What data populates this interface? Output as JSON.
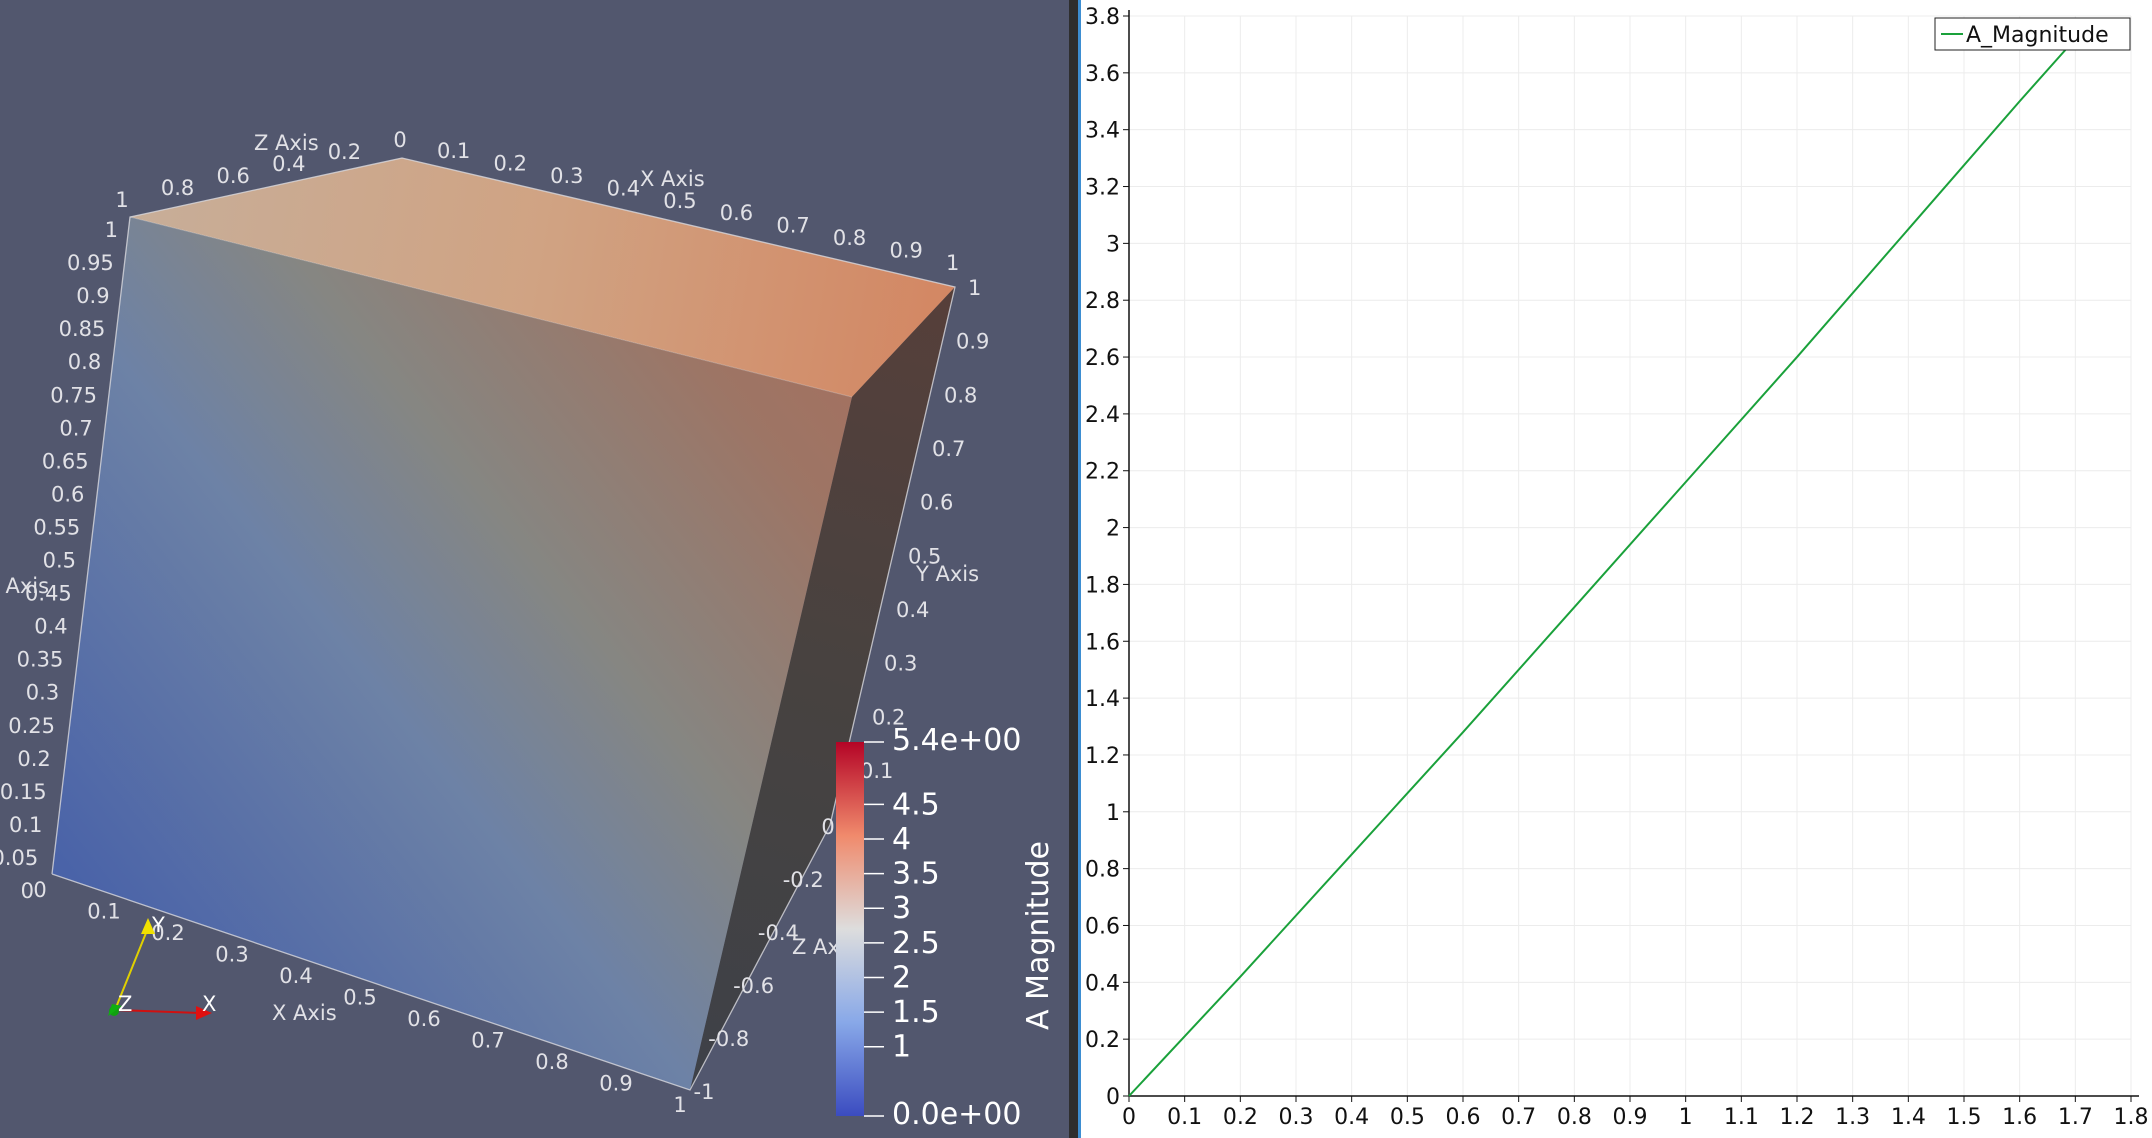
{
  "render_view": {
    "cube_axes": {
      "x_axis_title": "X Axis",
      "y_axis_title": "Y Axis",
      "z_axis_title": "Z Axis",
      "top_x_ticks": [
        "0.1",
        "0.2",
        "0.3",
        "0.4",
        "0.5",
        "0.6",
        "0.7",
        "0.8",
        "0.9",
        "1"
      ],
      "top_z_ticks": [
        "1",
        "0.8",
        "0.6",
        "0.4",
        "0.2",
        "0"
      ],
      "left_y_ticks": [
        "1",
        "0.95",
        "0.9",
        "0.85",
        "0.8",
        "0.75",
        "0.7",
        "0.65",
        "0.6",
        "0.55",
        "0.5",
        "0.45",
        "0.4",
        "0.35",
        "0.3",
        "0.25",
        "0.2",
        "0.15",
        "0.1",
        "0.05",
        "0"
      ],
      "bottom_x_ticks": [
        "0",
        "0.1",
        "0.2",
        "0.3",
        "0.4",
        "0.5",
        "0.6",
        "0.7",
        "0.8",
        "0.9",
        "1"
      ],
      "right_y_ticks": [
        "1",
        "0.9",
        "0.8",
        "0.7",
        "0.6",
        "0.5",
        "0.4",
        "0.3",
        "0.2",
        "0.1"
      ],
      "right_z_ticks": [
        "0",
        "-0.2",
        "-0.4",
        "-0.6",
        "-0.8",
        "-1"
      ]
    },
    "orientation_axes": {
      "x": "X",
      "y": "Y",
      "z": "Z"
    },
    "color_legend": {
      "title": "A Magnitude",
      "max_label": "5.4e+00",
      "min_label": "0.0e+00",
      "mid_labels": [
        "4.5",
        "4",
        "3.5",
        "3",
        "2.5",
        "2",
        "1.5",
        "1"
      ],
      "mid_values": [
        4.5,
        4,
        3.5,
        3,
        2.5,
        2,
        1.5,
        1
      ],
      "range": [
        0,
        5.4
      ],
      "colors": {
        "high": "#b40426",
        "mid": "#dddddd",
        "low": "#3b4cc0"
      }
    },
    "background_color": "#52576e"
  },
  "chart_data": {
    "type": "line",
    "title": "",
    "xlabel": "",
    "ylabel": "",
    "xlim": [
      0,
      1.8
    ],
    "ylim": [
      0,
      3.8
    ],
    "x_ticks": [
      0,
      0.1,
      0.2,
      0.3,
      0.4,
      0.5,
      0.6,
      0.7,
      0.8,
      0.9,
      1,
      1.1,
      1.2,
      1.3,
      1.4,
      1.5,
      1.6,
      1.7,
      1.8
    ],
    "y_ticks": [
      0,
      0.2,
      0.4,
      0.6,
      0.8,
      1,
      1.2,
      1.4,
      1.6,
      1.8,
      2,
      2.2,
      2.4,
      2.6,
      2.8,
      3,
      3.2,
      3.4,
      3.6,
      3.8
    ],
    "grid": true,
    "legend": {
      "position": "top-right"
    },
    "series": [
      {
        "name": "A_Magnitude",
        "color": "#1aa13b",
        "x": [
          0,
          0.2,
          0.4,
          0.6,
          0.8,
          1.0,
          1.2,
          1.4,
          1.6,
          1.7
        ],
        "y": [
          0,
          0.42,
          0.85,
          1.28,
          1.72,
          2.16,
          2.6,
          3.05,
          3.5,
          3.72
        ]
      }
    ]
  }
}
